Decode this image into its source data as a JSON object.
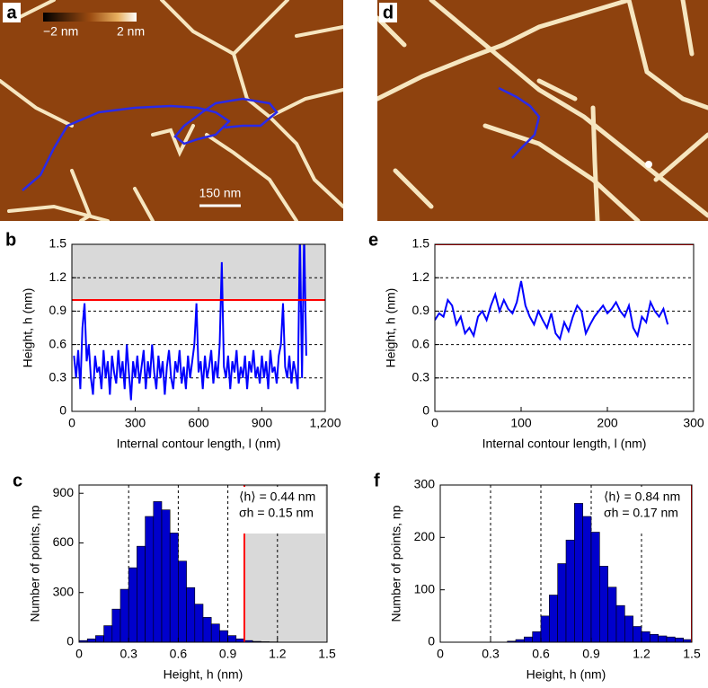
{
  "images": [
    {
      "panel": "a",
      "colorbar_labels": [
        "−2 nm",
        "2 nm"
      ],
      "scale_bar": "150 nm"
    },
    {
      "panel": "d"
    }
  ],
  "chart_data": [
    {
      "panel": "b",
      "type": "line",
      "xlabel": "Internal contour length, l (nm)",
      "ylabel": "Height, h (nm)",
      "xlim": [
        0,
        1200
      ],
      "ylim": [
        0,
        1.5
      ],
      "xticks": [
        0,
        300,
        600,
        900,
        {
          "value": 1200,
          "label": "1,200"
        }
      ],
      "yticks": [
        0,
        0.3,
        0.6,
        0.9,
        1.2,
        1.5
      ],
      "grid": "y",
      "threshold": 1.0,
      "threshold_color": "#ff0000",
      "shade": "above",
      "color": "#0000ff",
      "x": [
        10,
        20,
        30,
        40,
        50,
        60,
        70,
        80,
        90,
        100,
        110,
        120,
        130,
        140,
        150,
        160,
        170,
        180,
        190,
        200,
        210,
        220,
        230,
        240,
        250,
        260,
        270,
        280,
        290,
        300,
        310,
        320,
        330,
        340,
        350,
        360,
        370,
        380,
        390,
        400,
        410,
        420,
        430,
        440,
        450,
        460,
        470,
        480,
        490,
        500,
        510,
        520,
        530,
        540,
        550,
        560,
        570,
        580,
        590,
        600,
        610,
        620,
        630,
        640,
        650,
        660,
        670,
        680,
        690,
        700,
        710,
        720,
        730,
        740,
        750,
        760,
        770,
        780,
        790,
        800,
        810,
        820,
        830,
        840,
        850,
        860,
        870,
        880,
        890,
        900,
        910,
        920,
        930,
        940,
        950,
        960,
        970,
        980,
        990,
        1000,
        1010,
        1020,
        1030,
        1040,
        1050,
        1060,
        1070,
        1080,
        1090,
        1100,
        1110
      ],
      "values": [
        0.5,
        0.3,
        0.55,
        0.2,
        0.75,
        0.97,
        0.45,
        0.6,
        0.3,
        0.15,
        0.5,
        0.35,
        0.4,
        0.2,
        0.55,
        0.3,
        0.45,
        0.15,
        0.5,
        0.35,
        0.25,
        0.55,
        0.3,
        0.45,
        0.2,
        0.6,
        0.35,
        0.1,
        0.45,
        0.3,
        0.5,
        0.25,
        0.4,
        0.55,
        0.2,
        0.45,
        0.3,
        0.6,
        0.35,
        0.2,
        0.5,
        0.3,
        0.45,
        0.15,
        0.4,
        0.55,
        0.3,
        0.2,
        0.45,
        0.35,
        0.55,
        0.25,
        0.4,
        0.2,
        0.5,
        0.3,
        0.45,
        0.6,
        0.97,
        0.35,
        0.45,
        0.2,
        0.5,
        0.3,
        0.4,
        0.55,
        0.25,
        0.45,
        0.3,
        0.6,
        1.34,
        0.4,
        0.3,
        0.5,
        0.2,
        0.45,
        0.35,
        0.55,
        0.25,
        0.4,
        0.3,
        0.5,
        0.2,
        0.45,
        0.35,
        0.55,
        0.3,
        0.4,
        0.25,
        0.5,
        0.3,
        0.45,
        0.2,
        0.55,
        0.35,
        0.4,
        0.25,
        0.5,
        0.6,
        0.97,
        0.4,
        0.3,
        0.5,
        0.25,
        0.45,
        0.35,
        0.2,
        1.6,
        0.3,
        1.6,
        0.5
      ]
    },
    {
      "panel": "c",
      "type": "histogram",
      "xlabel": "Height, h (nm)",
      "ylabel": "Number of points, np",
      "xlim": [
        0,
        1.5
      ],
      "ylim": [
        0,
        950
      ],
      "xticks": [
        0,
        0.3,
        0.6,
        0.9,
        1.2,
        1.5
      ],
      "yticks": [
        0,
        300,
        600,
        900
      ],
      "grid": "x",
      "threshold": 1.0,
      "threshold_color": "#ff0000",
      "shade": "right",
      "color": "#0000cc",
      "annotations": [
        "⟨h⟩ = 0.44 nm",
        "σh = 0.15 nm"
      ],
      "bins": [
        0,
        0.05,
        0.1,
        0.15,
        0.2,
        0.25,
        0.3,
        0.35,
        0.4,
        0.45,
        0.5,
        0.55,
        0.6,
        0.65,
        0.7,
        0.75,
        0.8,
        0.85,
        0.9,
        0.95,
        1.0,
        1.05,
        1.1,
        1.15,
        1.2,
        1.25,
        1.3,
        1.35,
        1.4,
        1.45,
        1.5
      ],
      "values": [
        10,
        20,
        40,
        100,
        200,
        320,
        450,
        580,
        760,
        850,
        800,
        660,
        490,
        330,
        230,
        150,
        110,
        70,
        40,
        20,
        10,
        5,
        3,
        2,
        1,
        0,
        0,
        0,
        0,
        0
      ]
    },
    {
      "panel": "e",
      "type": "line",
      "xlabel": "Internal contour length, l (nm)",
      "ylabel": "Height, h (nm)",
      "xlim": [
        0,
        300
      ],
      "ylim": [
        0,
        1.5
      ],
      "xticks": [
        0,
        100,
        200,
        300
      ],
      "yticks": [
        0,
        0.3,
        0.6,
        0.9,
        1.2,
        1.5
      ],
      "grid": "y",
      "threshold": 1.5,
      "threshold_color": "#ff0000",
      "color": "#0000ff",
      "x": [
        0,
        5,
        10,
        15,
        20,
        25,
        30,
        35,
        40,
        45,
        50,
        55,
        60,
        65,
        70,
        75,
        80,
        85,
        90,
        95,
        100,
        105,
        110,
        115,
        120,
        125,
        130,
        135,
        140,
        145,
        150,
        155,
        160,
        165,
        170,
        175,
        180,
        185,
        190,
        195,
        200,
        205,
        210,
        215,
        220,
        225,
        230,
        235,
        240,
        245,
        250,
        255,
        260,
        265,
        270
      ],
      "values": [
        0.82,
        0.88,
        0.85,
        1.0,
        0.95,
        0.78,
        0.85,
        0.7,
        0.75,
        0.68,
        0.85,
        0.9,
        0.82,
        0.95,
        1.05,
        0.9,
        1.0,
        0.92,
        0.88,
        0.98,
        1.17,
        0.95,
        0.85,
        0.78,
        0.9,
        0.82,
        0.75,
        0.88,
        0.7,
        0.65,
        0.8,
        0.72,
        0.85,
        0.95,
        0.9,
        0.7,
        0.78,
        0.85,
        0.9,
        0.95,
        0.88,
        0.92,
        0.98,
        0.9,
        0.85,
        0.95,
        0.75,
        0.68,
        0.85,
        0.8,
        0.98,
        0.9,
        0.85,
        0.92,
        0.78
      ]
    },
    {
      "panel": "f",
      "type": "histogram",
      "xlabel": "Height, h (nm)",
      "ylabel": "Number of points, np",
      "xlim": [
        0,
        1.5
      ],
      "ylim": [
        0,
        300
      ],
      "xticks": [
        0,
        0.3,
        0.6,
        0.9,
        1.2,
        1.5
      ],
      "yticks": [
        0,
        100,
        200,
        300
      ],
      "grid": "x",
      "threshold": 1.5,
      "threshold_color": "#ff0000",
      "color": "#0000cc",
      "annotations": [
        "⟨h⟩ = 0.84 nm",
        "σh = 0.17 nm"
      ],
      "bins": [
        0,
        0.05,
        0.1,
        0.15,
        0.2,
        0.25,
        0.3,
        0.35,
        0.4,
        0.45,
        0.5,
        0.55,
        0.6,
        0.65,
        0.7,
        0.75,
        0.8,
        0.85,
        0.9,
        0.95,
        1.0,
        1.05,
        1.1,
        1.15,
        1.2,
        1.25,
        1.3,
        1.35,
        1.4,
        1.45,
        1.5
      ],
      "values": [
        0,
        0,
        0,
        0,
        0,
        0,
        0,
        0,
        2,
        5,
        10,
        20,
        50,
        90,
        150,
        195,
        265,
        240,
        210,
        145,
        105,
        70,
        50,
        30,
        20,
        15,
        12,
        10,
        8,
        5
      ]
    }
  ]
}
